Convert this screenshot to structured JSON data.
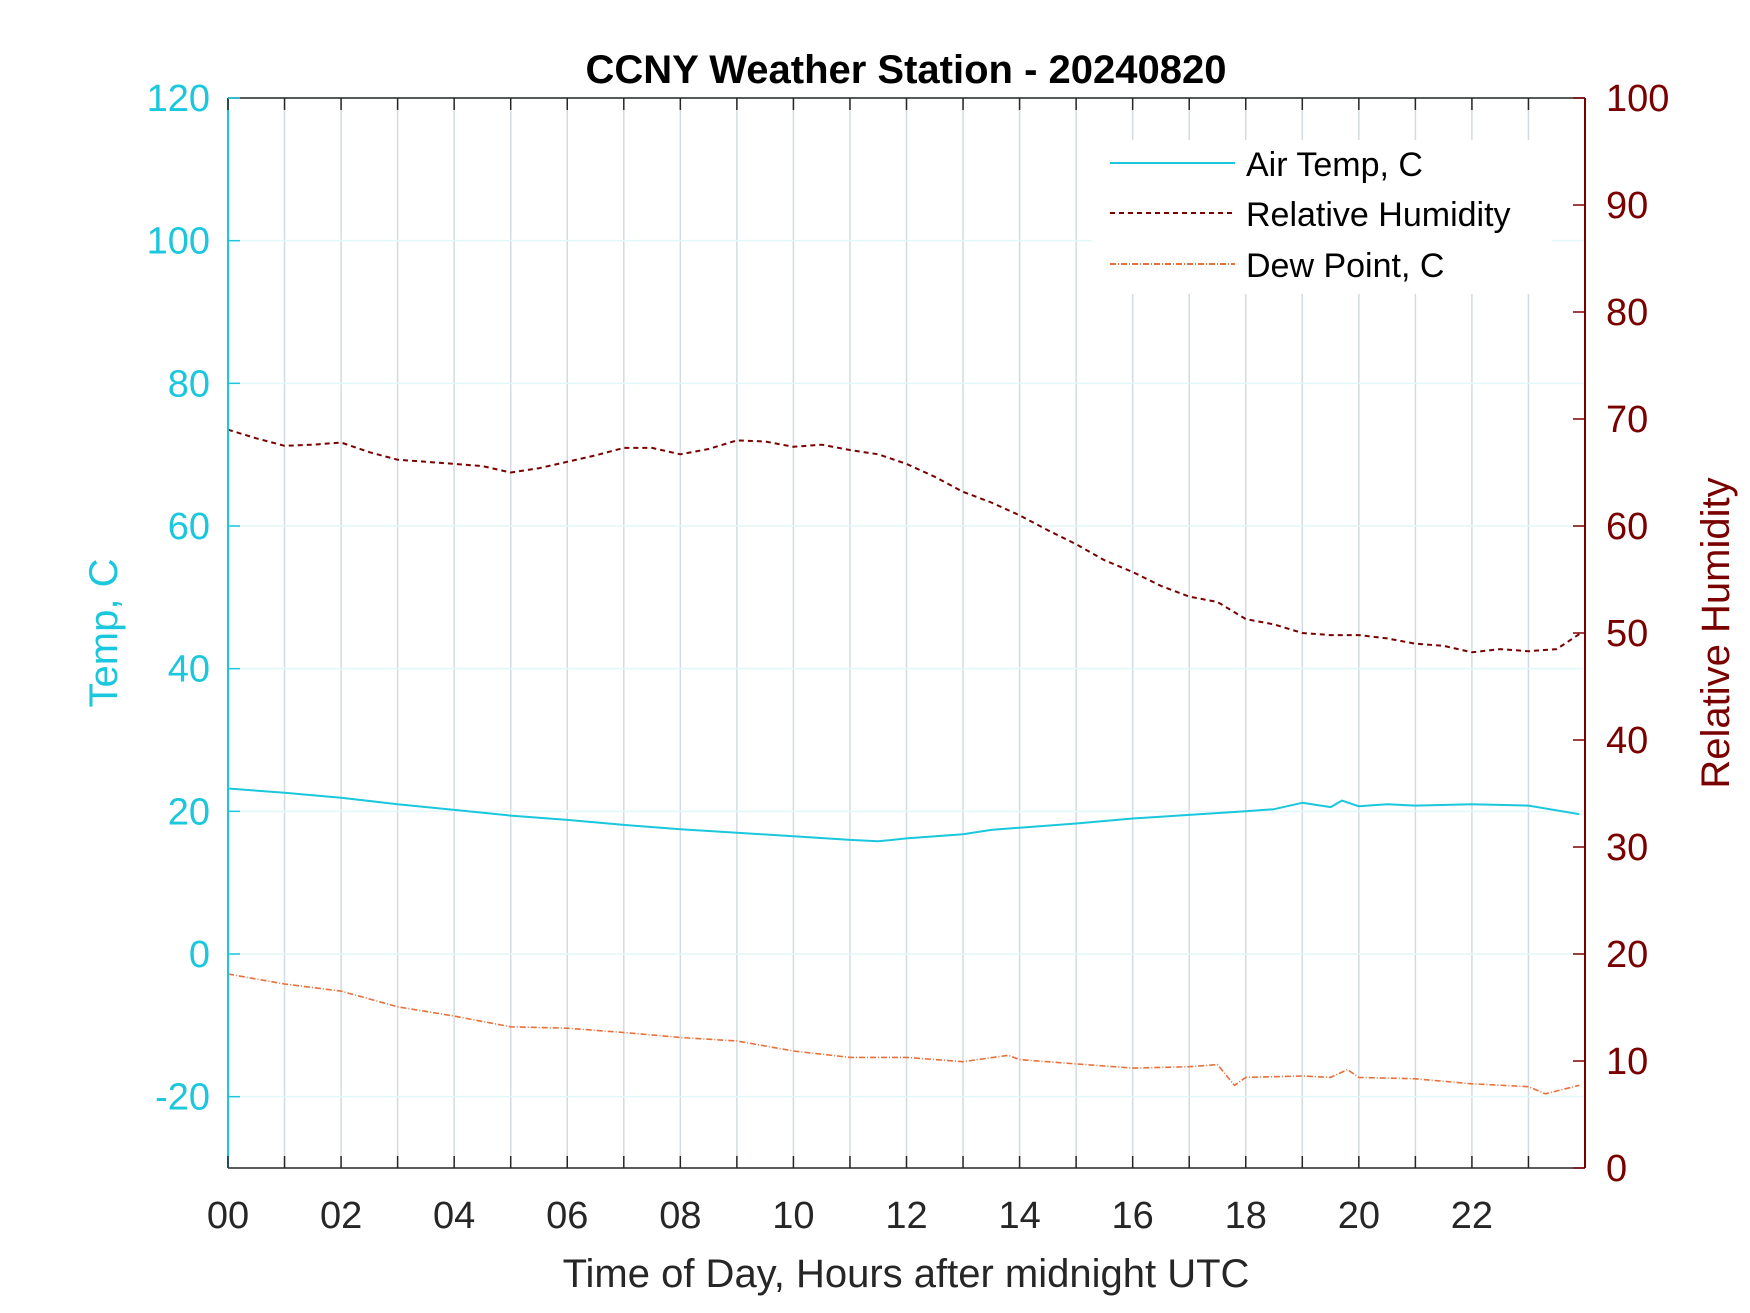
{
  "colors": {
    "air_temp": "#1ac7dc",
    "relative_humidity": "#7a0000",
    "dew_point": "#e8703a",
    "left_axis": "#1ac7dc",
    "right_axis": "#7a0000",
    "grid_x": "#d3dbe0",
    "grid_y": "#e3f6fa"
  },
  "chart_data": {
    "type": "line",
    "title": "CCNY Weather Station - 20240820",
    "xlabel": "Time of Day, Hours after midnight UTC",
    "ylabel_left": "Temp, C",
    "ylabel_right": "Relative Humidity",
    "xlim": [
      0,
      24
    ],
    "ylim_left": [
      -30,
      120
    ],
    "ylim_right": [
      0,
      100
    ],
    "x_ticks": [
      "00",
      "02",
      "04",
      "06",
      "08",
      "10",
      "12",
      "14",
      "16",
      "18",
      "20",
      "22"
    ],
    "y_ticks_left": [
      "-20",
      "0",
      "20",
      "40",
      "60",
      "80",
      "100",
      "120"
    ],
    "y_ticks_right": [
      "0",
      "10",
      "20",
      "30",
      "40",
      "50",
      "60",
      "70",
      "80",
      "90",
      "100"
    ],
    "grid": "on",
    "legend_position": "top-right",
    "series": [
      {
        "name": "Air Temp, C",
        "axis": "left",
        "style": "solid",
        "x": [
          0,
          1,
          2,
          3,
          4,
          5,
          6,
          7,
          8,
          9,
          10,
          11,
          11.5,
          12,
          13,
          13.5,
          14,
          15,
          16,
          17,
          18,
          18.5,
          19,
          19.5,
          19.7,
          20,
          20.5,
          21,
          22,
          23,
          23.9
        ],
        "y": [
          23.2,
          22.6,
          21.9,
          21.0,
          20.2,
          19.4,
          18.8,
          18.1,
          17.5,
          17.0,
          16.5,
          16.0,
          15.8,
          16.2,
          16.8,
          17.4,
          17.7,
          18.3,
          19.0,
          19.5,
          20.0,
          20.3,
          21.2,
          20.6,
          21.5,
          20.7,
          21.0,
          20.8,
          21.0,
          20.8,
          19.6
        ]
      },
      {
        "name": "Relative Humidity",
        "axis": "right",
        "style": "dashed",
        "x": [
          0,
          0.5,
          1,
          1.5,
          2,
          2.5,
          3,
          3.5,
          4,
          4.5,
          5,
          5.5,
          6,
          6.5,
          7,
          7.5,
          8,
          8.5,
          9,
          9.5,
          10,
          10.5,
          11,
          11.5,
          12,
          12.5,
          13,
          13.5,
          14,
          14.5,
          15,
          15.5,
          16,
          16.5,
          17,
          17.5,
          18,
          18.5,
          19,
          19.5,
          20,
          20.5,
          21,
          21.5,
          22,
          22.5,
          23,
          23.5,
          23.9
        ],
        "y": [
          69.0,
          68.2,
          67.5,
          67.6,
          67.8,
          66.9,
          66.2,
          66.0,
          65.8,
          65.6,
          65.0,
          65.4,
          66.0,
          66.6,
          67.3,
          67.3,
          66.7,
          67.2,
          68.0,
          67.9,
          67.4,
          67.6,
          67.1,
          66.7,
          65.8,
          64.6,
          63.2,
          62.2,
          61.0,
          59.6,
          58.3,
          56.8,
          55.7,
          54.4,
          53.4,
          52.9,
          51.3,
          50.8,
          50.0,
          49.8,
          49.8,
          49.5,
          49.0,
          48.8,
          48.2,
          48.5,
          48.3,
          48.5,
          49.9
        ]
      },
      {
        "name": "Dew Point, C",
        "axis": "left",
        "style": "dashdot",
        "x": [
          0,
          1,
          2,
          3,
          4,
          5,
          6,
          7,
          8,
          9,
          10,
          11,
          12,
          13,
          13.8,
          14,
          15,
          16,
          17,
          17.5,
          17.8,
          18,
          19,
          19.5,
          19.8,
          20,
          21,
          22,
          23,
          23.3,
          23.9
        ],
        "y": [
          -2.8,
          -4.2,
          -5.2,
          -7.4,
          -8.7,
          -10.2,
          -10.4,
          -11.0,
          -11.7,
          -12.2,
          -13.6,
          -14.5,
          -14.5,
          -15.1,
          -14.2,
          -14.8,
          -15.4,
          -16.0,
          -15.8,
          -15.5,
          -18.4,
          -17.3,
          -17.1,
          -17.3,
          -16.2,
          -17.3,
          -17.5,
          -18.2,
          -18.6,
          -19.6,
          -18.4
        ]
      }
    ]
  }
}
